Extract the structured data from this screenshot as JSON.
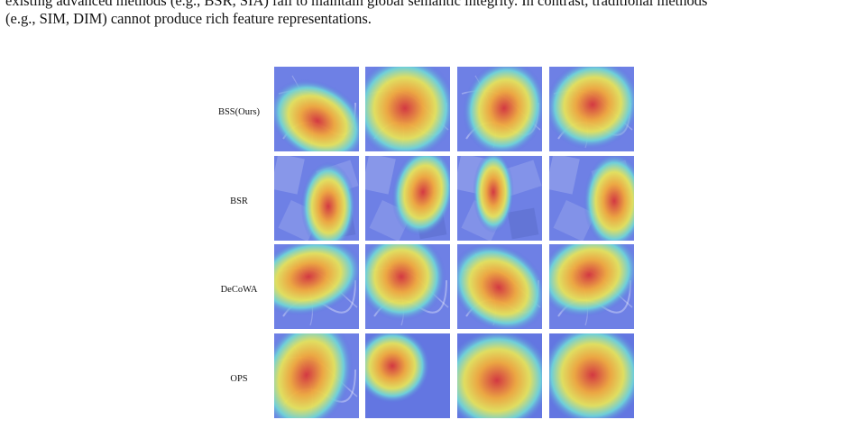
{
  "caption": {
    "line1": "existing advanced methods (e.g., BSR, SIA) fail to maintain global semantic integrity. In contrast, traditional methods",
    "line2": "(e.g., SIM, DIM) cannot produce rich feature representations."
  },
  "figure": {
    "rows": [
      {
        "label": "BSS(Ours)"
      },
      {
        "label": "BSR"
      },
      {
        "label": "DeCoWA"
      },
      {
        "label": "OPS"
      }
    ],
    "colors": {
      "heat_hot": "#d8353a",
      "heat_warm": "#f2a93b",
      "heat_mid": "#e6e35a",
      "heat_cool": "#6fd3d9",
      "heat_cold": "#5c6fe0"
    }
  }
}
